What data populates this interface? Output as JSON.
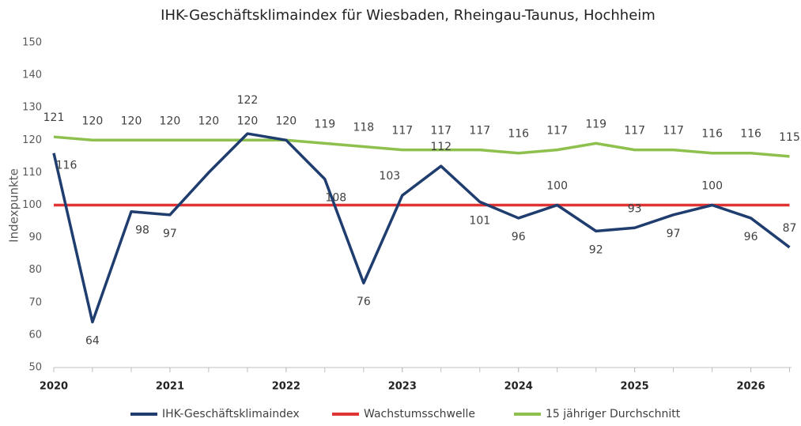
{
  "chart_data": {
    "type": "line",
    "title": "IHK-Geschäftsklimaindex für Wiesbaden, Rheingau-Taunus, Hochheim",
    "y_label": "Indexpunkte",
    "x": [
      2020,
      2020.333,
      2020.667,
      2021,
      2021.333,
      2021.667,
      2022,
      2022.333,
      2022.667,
      2023,
      2023.333,
      2023.667,
      2024,
      2024.333,
      2024.667,
      2025,
      2025.333,
      2025.667,
      2026,
      2026.333
    ],
    "xlim": [
      2020,
      2026.35
    ],
    "xticks": [
      2020,
      2021,
      2022,
      2023,
      2024,
      2025,
      2026
    ],
    "ylim": [
      50,
      150
    ],
    "yticks": [
      50,
      60,
      70,
      80,
      90,
      100,
      110,
      120,
      130,
      140,
      150
    ],
    "legend": "bottom",
    "series": [
      {
        "name": "IHK-Geschäftsklimaindex",
        "color": "#1f3d6e",
        "values": [
          116,
          64,
          98,
          97,
          110,
          122,
          120,
          108,
          76,
          103,
          112,
          101,
          96,
          100,
          92,
          93,
          97,
          100,
          96,
          87
        ],
        "value_labels": [
          "116",
          "64",
          "98",
          "97",
          null,
          "122",
          null,
          "108",
          "76",
          "103",
          "112",
          "101",
          "96",
          "100",
          "92",
          "93",
          "97",
          "100",
          "96",
          "87"
        ]
      },
      {
        "name": "Wachstumsschwelle",
        "color": "#e03333",
        "values": [
          100,
          100,
          100,
          100,
          100,
          100,
          100,
          100,
          100,
          100,
          100,
          100,
          100,
          100,
          100,
          100,
          100,
          100,
          100,
          100
        ]
      },
      {
        "name": "15 jähriger Durchschnitt",
        "color": "#8dc04d",
        "values": [
          121,
          120,
          120,
          120,
          120,
          120,
          120,
          119,
          118,
          117,
          117,
          117,
          116,
          117,
          119,
          117,
          117,
          116,
          116,
          115
        ],
        "value_labels": [
          "121",
          "120",
          "120",
          "120",
          "120",
          "120",
          "120",
          "119",
          "118",
          "117",
          "117",
          "117",
          "116",
          "117",
          "119",
          "117",
          "117",
          "116",
          "116",
          "115"
        ]
      }
    ]
  }
}
